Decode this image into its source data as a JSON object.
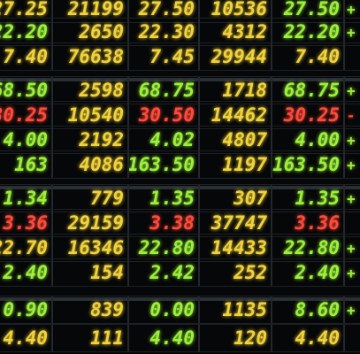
{
  "colors": {
    "green": "#9bf03a",
    "yellow": "#f0d23a",
    "red": "#ff4a3a",
    "background": "#060708"
  },
  "rows": [
    {
      "cells": [
        {
          "text": "27.25",
          "color": "yellow"
        },
        {
          "text": "21199",
          "color": "yellow"
        },
        {
          "text": "27.50",
          "color": "yellow"
        },
        {
          "text": "10536",
          "color": "yellow"
        },
        {
          "text": "27.50",
          "color": "green"
        },
        {
          "text": "+",
          "color": "green"
        }
      ]
    },
    {
      "cells": [
        {
          "text": "22.20",
          "color": "green"
        },
        {
          "text": "2650",
          "color": "yellow"
        },
        {
          "text": "22.30",
          "color": "yellow"
        },
        {
          "text": "4312",
          "color": "yellow"
        },
        {
          "text": "22.20",
          "color": "green"
        },
        {
          "text": "+",
          "color": "green"
        }
      ]
    },
    {
      "cells": [
        {
          "text": "7.40",
          "color": "yellow"
        },
        {
          "text": "76638",
          "color": "yellow"
        },
        {
          "text": "7.45",
          "color": "yellow"
        },
        {
          "text": "29944",
          "color": "yellow"
        },
        {
          "text": "7.40",
          "color": "yellow"
        },
        {
          "text": "",
          "color": "yellow"
        }
      ]
    },
    {
      "cells": [
        {
          "text": "68.50",
          "color": "green"
        },
        {
          "text": "2598",
          "color": "yellow"
        },
        {
          "text": "68.75",
          "color": "green"
        },
        {
          "text": "1718",
          "color": "yellow"
        },
        {
          "text": "68.75",
          "color": "green"
        },
        {
          "text": "+",
          "color": "green"
        }
      ]
    },
    {
      "cells": [
        {
          "text": "30.25",
          "color": "red"
        },
        {
          "text": "10540",
          "color": "yellow"
        },
        {
          "text": "30.50",
          "color": "red"
        },
        {
          "text": "14462",
          "color": "yellow"
        },
        {
          "text": "30.25",
          "color": "red"
        },
        {
          "text": "-",
          "color": "red"
        }
      ]
    },
    {
      "cells": [
        {
          "text": "4.00",
          "color": "green"
        },
        {
          "text": "2192",
          "color": "yellow"
        },
        {
          "text": "4.02",
          "color": "green"
        },
        {
          "text": "4807",
          "color": "yellow"
        },
        {
          "text": "4.00",
          "color": "green"
        },
        {
          "text": "+",
          "color": "green"
        }
      ]
    },
    {
      "cells": [
        {
          "text": "163",
          "color": "green"
        },
        {
          "text": "4086",
          "color": "yellow"
        },
        {
          "text": "163.50",
          "color": "green"
        },
        {
          "text": "1197",
          "color": "yellow"
        },
        {
          "text": "163.50",
          "color": "green"
        },
        {
          "text": "+",
          "color": "green"
        }
      ]
    },
    {
      "cells": [
        {
          "text": "1.34",
          "color": "green"
        },
        {
          "text": "779",
          "color": "yellow"
        },
        {
          "text": "1.35",
          "color": "green"
        },
        {
          "text": "307",
          "color": "yellow"
        },
        {
          "text": "1.35",
          "color": "green"
        },
        {
          "text": "+",
          "color": "green"
        }
      ]
    },
    {
      "cells": [
        {
          "text": "3.36",
          "color": "red"
        },
        {
          "text": "29159",
          "color": "yellow"
        },
        {
          "text": "3.38",
          "color": "red"
        },
        {
          "text": "37747",
          "color": "yellow"
        },
        {
          "text": "3.36",
          "color": "red"
        },
        {
          "text": "",
          "color": "red"
        }
      ]
    },
    {
      "cells": [
        {
          "text": "22.70",
          "color": "yellow"
        },
        {
          "text": "16346",
          "color": "yellow"
        },
        {
          "text": "22.80",
          "color": "green"
        },
        {
          "text": "14433",
          "color": "yellow"
        },
        {
          "text": "22.80",
          "color": "green"
        },
        {
          "text": "+",
          "color": "green"
        }
      ]
    },
    {
      "cells": [
        {
          "text": "2.40",
          "color": "green"
        },
        {
          "text": "154",
          "color": "yellow"
        },
        {
          "text": "2.42",
          "color": "green"
        },
        {
          "text": "252",
          "color": "yellow"
        },
        {
          "text": "2.40",
          "color": "green"
        },
        {
          "text": "+",
          "color": "green"
        }
      ]
    },
    {
      "cells": [
        {
          "text": "0.90",
          "color": "green"
        },
        {
          "text": "839",
          "color": "yellow"
        },
        {
          "text": "0.00",
          "color": "green"
        },
        {
          "text": "1135",
          "color": "yellow"
        },
        {
          "text": "8.60",
          "color": "green"
        },
        {
          "text": "+",
          "color": "green"
        }
      ]
    },
    {
      "cells": [
        {
          "text": "4.40",
          "color": "yellow"
        },
        {
          "text": "111",
          "color": "yellow"
        },
        {
          "text": "4.40",
          "color": "green"
        },
        {
          "text": "120",
          "color": "yellow"
        },
        {
          "text": "4.40",
          "color": "yellow"
        },
        {
          "text": "",
          "color": "yellow"
        }
      ]
    }
  ]
}
